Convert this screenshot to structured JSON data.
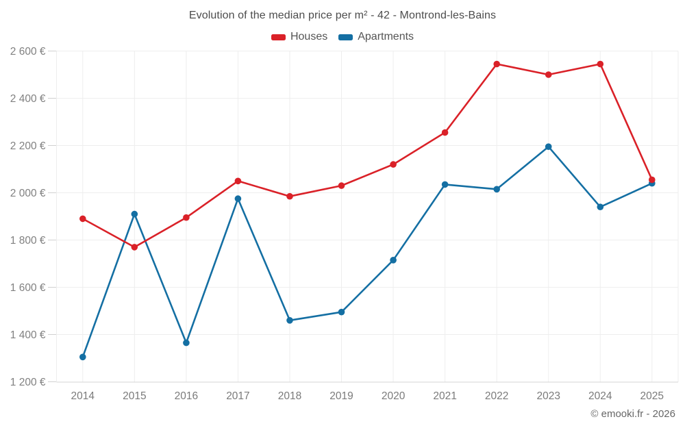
{
  "chart_data": {
    "type": "line",
    "title": "Evolution of the median price per m² - 42 - Montrond-les-Bains",
    "xlabel": "",
    "ylabel": "",
    "x": [
      "2014",
      "2015",
      "2016",
      "2017",
      "2018",
      "2019",
      "2020",
      "2021",
      "2022",
      "2023",
      "2024",
      "2025"
    ],
    "ylim": [
      1200,
      2600
    ],
    "grid": true,
    "legend_position": "top",
    "y_ticks": [
      {
        "value": 1200,
        "label": "1 200 €"
      },
      {
        "value": 1400,
        "label": "1 400 €"
      },
      {
        "value": 1600,
        "label": "1 600 €"
      },
      {
        "value": 1800,
        "label": "1 800 €"
      },
      {
        "value": 2000,
        "label": "2 000 €"
      },
      {
        "value": 2200,
        "label": "2 200 €"
      },
      {
        "value": 2400,
        "label": "2 400 €"
      },
      {
        "value": 2600,
        "label": "2 600 €"
      }
    ],
    "series": [
      {
        "name": "Houses",
        "color": "#da2128",
        "values": [
          1890,
          1770,
          1895,
          2050,
          1985,
          2030,
          2120,
          2255,
          2545,
          2500,
          2545,
          2055
        ]
      },
      {
        "name": "Apartments",
        "color": "#146fa3",
        "values": [
          1305,
          1910,
          1365,
          1975,
          1460,
          1495,
          1715,
          2035,
          2015,
          2195,
          1940,
          2040
        ]
      }
    ]
  },
  "footer": {
    "credit": "© emooki.fr - 2026"
  }
}
